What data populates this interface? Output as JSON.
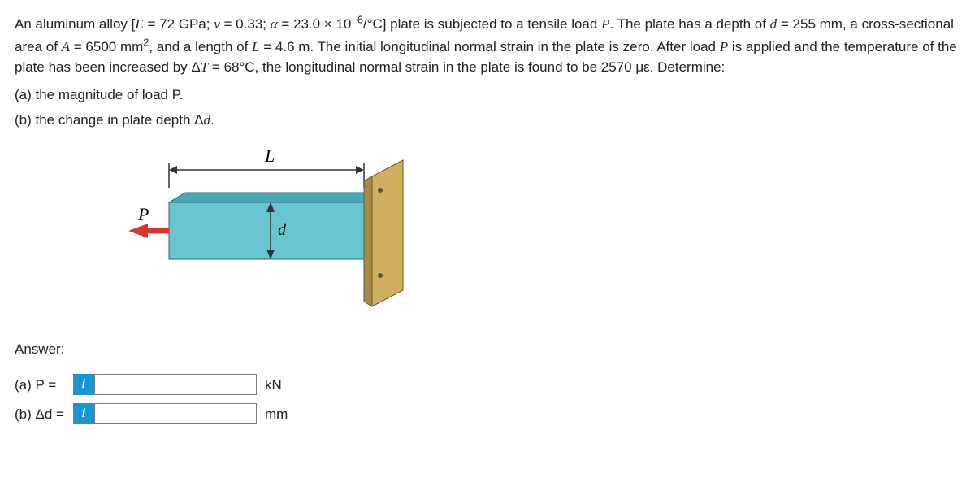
{
  "problem": {
    "text_html": "An aluminum alloy [<span class='italic'>E</span> = 72 GPa; <span class='italic'>v</span> = 0.33; <span class='italic'>α</span> = 23.0 × 10<sup>−6</sup>/°C] plate is subjected to a tensile load <span class='italic'>P</span>. The plate has a depth of <span class='italic'>d</span> = 255 mm, a cross-sectional area of <span class='italic'>A</span> = 6500 mm<sup>2</sup>, and a length of <span class='italic'>L</span> = 4.6 m.  The initial longitudinal normal strain in the plate is zero. After load <span class='italic'>P</span> is applied and the temperature of the plate has been increased by Δ<span class='italic'>T</span> = 68°C, the longitudinal normal strain in the plate is found to be 2570 με.  Determine:",
    "part_a": "(a) the magnitude of load P.",
    "part_b_html": "(b) the change in plate depth Δ<span class='italic'>d</span>."
  },
  "figure": {
    "label_L": "L",
    "label_d": "d",
    "label_P": "P",
    "plate_front_color": "#68c4d1",
    "plate_top_color": "#4aa7b5",
    "plate_side_color": "#3a8a97",
    "arrow_red": "#d33a2f",
    "wall_color": "#d0b060",
    "wall_shade": "#a88a48",
    "stroke": "#333333"
  },
  "answer": {
    "heading": "Answer:",
    "rows": [
      {
        "lhs_html": "(a) P =",
        "value": "",
        "unit": "kN"
      },
      {
        "lhs_html": "(b) Δd =",
        "value": "",
        "unit": "mm"
      }
    ]
  }
}
